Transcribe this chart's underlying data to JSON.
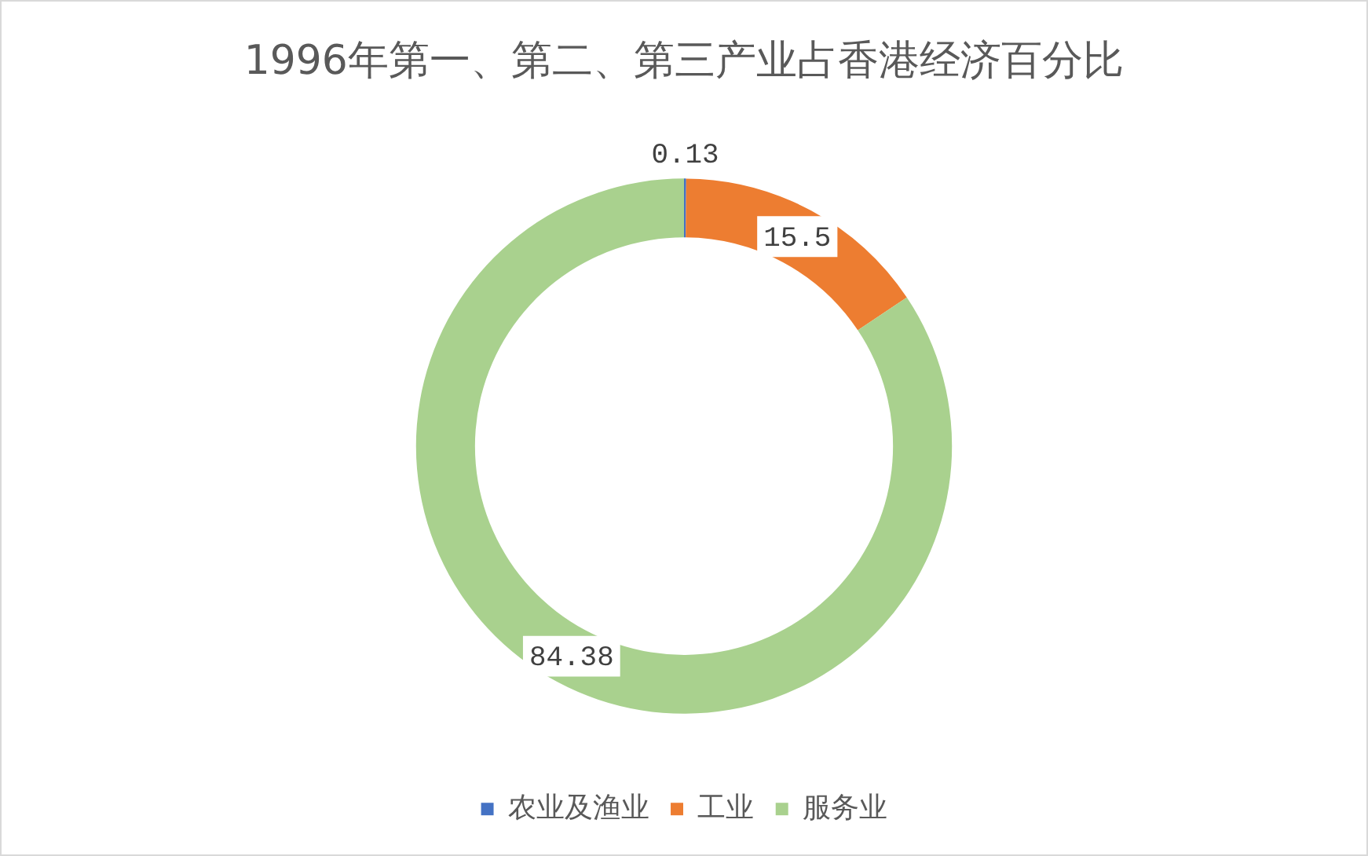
{
  "chart_data": {
    "type": "donut",
    "title": "1996年第一、第二、第三产业占香港经济百分比",
    "categories": [
      "农业及渔业",
      "工业",
      "服务业"
    ],
    "values": [
      0.13,
      15.5,
      84.38
    ],
    "colors": [
      "#4472c4",
      "#ed7d31",
      "#a9d18e"
    ],
    "legend": "bottom",
    "data_labels": true
  }
}
